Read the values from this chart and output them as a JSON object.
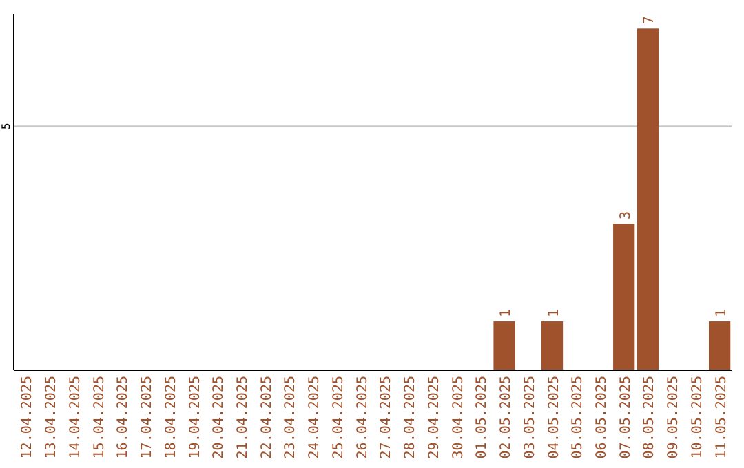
{
  "chart_data": {
    "type": "bar",
    "categories": [
      "12.04.2025",
      "13.04.2025",
      "14.04.2025",
      "15.04.2025",
      "16.04.2025",
      "17.04.2025",
      "18.04.2025",
      "19.04.2025",
      "20.04.2025",
      "21.04.2025",
      "22.04.2025",
      "23.04.2025",
      "24.04.2025",
      "25.04.2025",
      "26.04.2025",
      "27.04.2025",
      "28.04.2025",
      "29.04.2025",
      "30.04.2025",
      "01.05.2025",
      "02.05.2025",
      "03.05.2025",
      "04.05.2025",
      "05.05.2025",
      "06.05.2025",
      "07.05.2025",
      "08.05.2025",
      "09.05.2025",
      "10.05.2025",
      "11.05.2025"
    ],
    "values": [
      null,
      null,
      null,
      null,
      null,
      null,
      null,
      null,
      null,
      null,
      null,
      null,
      null,
      null,
      null,
      null,
      null,
      null,
      null,
      null,
      1,
      null,
      1,
      null,
      null,
      3,
      7,
      null,
      null,
      1
    ],
    "data_labels": true,
    "color": "#a0522d",
    "ylim": [
      0,
      7.3
    ],
    "ref_lines": [
      {
        "axis": "y",
        "value": 5,
        "label": "5",
        "color": "#c8c8c8"
      }
    ]
  }
}
